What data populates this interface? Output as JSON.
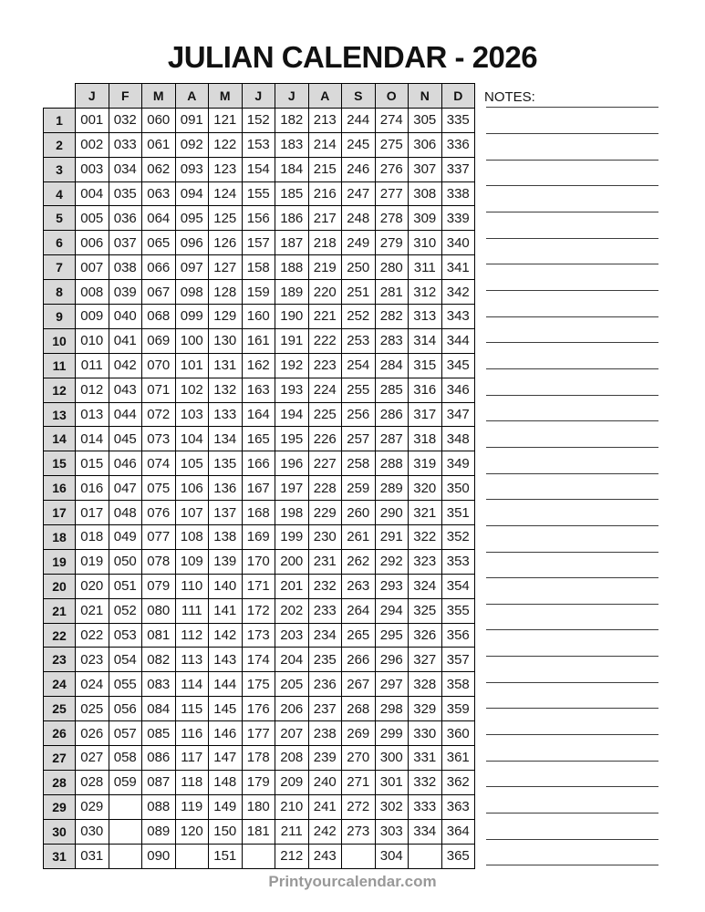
{
  "page": {
    "title": "JULIAN CALENDAR - 2026",
    "footer": "Printyourcalendar.com"
  },
  "notes": {
    "label": "NOTES:",
    "line_count": 30
  },
  "colors": {
    "header_bg": "#d9d9d9",
    "border": "#000000",
    "note_line": "#3d3d3d",
    "footer_text": "#999999"
  },
  "calendar": {
    "months": [
      "J",
      "F",
      "M",
      "A",
      "M",
      "J",
      "J",
      "A",
      "S",
      "O",
      "N",
      "D"
    ],
    "rows": [
      {
        "day": "1",
        "cells": [
          "001",
          "032",
          "060",
          "091",
          "121",
          "152",
          "182",
          "213",
          "244",
          "274",
          "305",
          "335"
        ]
      },
      {
        "day": "2",
        "cells": [
          "002",
          "033",
          "061",
          "092",
          "122",
          "153",
          "183",
          "214",
          "245",
          "275",
          "306",
          "336"
        ]
      },
      {
        "day": "3",
        "cells": [
          "003",
          "034",
          "062",
          "093",
          "123",
          "154",
          "184",
          "215",
          "246",
          "276",
          "307",
          "337"
        ]
      },
      {
        "day": "4",
        "cells": [
          "004",
          "035",
          "063",
          "094",
          "124",
          "155",
          "185",
          "216",
          "247",
          "277",
          "308",
          "338"
        ]
      },
      {
        "day": "5",
        "cells": [
          "005",
          "036",
          "064",
          "095",
          "125",
          "156",
          "186",
          "217",
          "248",
          "278",
          "309",
          "339"
        ]
      },
      {
        "day": "6",
        "cells": [
          "006",
          "037",
          "065",
          "096",
          "126",
          "157",
          "187",
          "218",
          "249",
          "279",
          "310",
          "340"
        ]
      },
      {
        "day": "7",
        "cells": [
          "007",
          "038",
          "066",
          "097",
          "127",
          "158",
          "188",
          "219",
          "250",
          "280",
          "311",
          "341"
        ]
      },
      {
        "day": "8",
        "cells": [
          "008",
          "039",
          "067",
          "098",
          "128",
          "159",
          "189",
          "220",
          "251",
          "281",
          "312",
          "342"
        ]
      },
      {
        "day": "9",
        "cells": [
          "009",
          "040",
          "068",
          "099",
          "129",
          "160",
          "190",
          "221",
          "252",
          "282",
          "313",
          "343"
        ]
      },
      {
        "day": "10",
        "cells": [
          "010",
          "041",
          "069",
          "100",
          "130",
          "161",
          "191",
          "222",
          "253",
          "283",
          "314",
          "344"
        ]
      },
      {
        "day": "11",
        "cells": [
          "011",
          "042",
          "070",
          "101",
          "131",
          "162",
          "192",
          "223",
          "254",
          "284",
          "315",
          "345"
        ]
      },
      {
        "day": "12",
        "cells": [
          "012",
          "043",
          "071",
          "102",
          "132",
          "163",
          "193",
          "224",
          "255",
          "285",
          "316",
          "346"
        ]
      },
      {
        "day": "13",
        "cells": [
          "013",
          "044",
          "072",
          "103",
          "133",
          "164",
          "194",
          "225",
          "256",
          "286",
          "317",
          "347"
        ]
      },
      {
        "day": "14",
        "cells": [
          "014",
          "045",
          "073",
          "104",
          "134",
          "165",
          "195",
          "226",
          "257",
          "287",
          "318",
          "348"
        ]
      },
      {
        "day": "15",
        "cells": [
          "015",
          "046",
          "074",
          "105",
          "135",
          "166",
          "196",
          "227",
          "258",
          "288",
          "319",
          "349"
        ]
      },
      {
        "day": "16",
        "cells": [
          "016",
          "047",
          "075",
          "106",
          "136",
          "167",
          "197",
          "228",
          "259",
          "289",
          "320",
          "350"
        ]
      },
      {
        "day": "17",
        "cells": [
          "017",
          "048",
          "076",
          "107",
          "137",
          "168",
          "198",
          "229",
          "260",
          "290",
          "321",
          "351"
        ]
      },
      {
        "day": "18",
        "cells": [
          "018",
          "049",
          "077",
          "108",
          "138",
          "169",
          "199",
          "230",
          "261",
          "291",
          "322",
          "352"
        ]
      },
      {
        "day": "19",
        "cells": [
          "019",
          "050",
          "078",
          "109",
          "139",
          "170",
          "200",
          "231",
          "262",
          "292",
          "323",
          "353"
        ]
      },
      {
        "day": "20",
        "cells": [
          "020",
          "051",
          "079",
          "110",
          "140",
          "171",
          "201",
          "232",
          "263",
          "293",
          "324",
          "354"
        ]
      },
      {
        "day": "21",
        "cells": [
          "021",
          "052",
          "080",
          "111",
          "141",
          "172",
          "202",
          "233",
          "264",
          "294",
          "325",
          "355"
        ]
      },
      {
        "day": "22",
        "cells": [
          "022",
          "053",
          "081",
          "112",
          "142",
          "173",
          "203",
          "234",
          "265",
          "295",
          "326",
          "356"
        ]
      },
      {
        "day": "23",
        "cells": [
          "023",
          "054",
          "082",
          "113",
          "143",
          "174",
          "204",
          "235",
          "266",
          "296",
          "327",
          "357"
        ]
      },
      {
        "day": "24",
        "cells": [
          "024",
          "055",
          "083",
          "114",
          "144",
          "175",
          "205",
          "236",
          "267",
          "297",
          "328",
          "358"
        ]
      },
      {
        "day": "25",
        "cells": [
          "025",
          "056",
          "084",
          "115",
          "145",
          "176",
          "206",
          "237",
          "268",
          "298",
          "329",
          "359"
        ]
      },
      {
        "day": "26",
        "cells": [
          "026",
          "057",
          "085",
          "116",
          "146",
          "177",
          "207",
          "238",
          "269",
          "299",
          "330",
          "360"
        ]
      },
      {
        "day": "27",
        "cells": [
          "027",
          "058",
          "086",
          "117",
          "147",
          "178",
          "208",
          "239",
          "270",
          "300",
          "331",
          "361"
        ]
      },
      {
        "day": "28",
        "cells": [
          "028",
          "059",
          "087",
          "118",
          "148",
          "179",
          "209",
          "240",
          "271",
          "301",
          "332",
          "362"
        ]
      },
      {
        "day": "29",
        "cells": [
          "029",
          "",
          "088",
          "119",
          "149",
          "180",
          "210",
          "241",
          "272",
          "302",
          "333",
          "363"
        ]
      },
      {
        "day": "30",
        "cells": [
          "030",
          "",
          "089",
          "120",
          "150",
          "181",
          "211",
          "242",
          "273",
          "303",
          "334",
          "364"
        ]
      },
      {
        "day": "31",
        "cells": [
          "031",
          "",
          "090",
          "",
          "151",
          "",
          "212",
          "243",
          "",
          "304",
          "",
          "365"
        ]
      }
    ]
  }
}
